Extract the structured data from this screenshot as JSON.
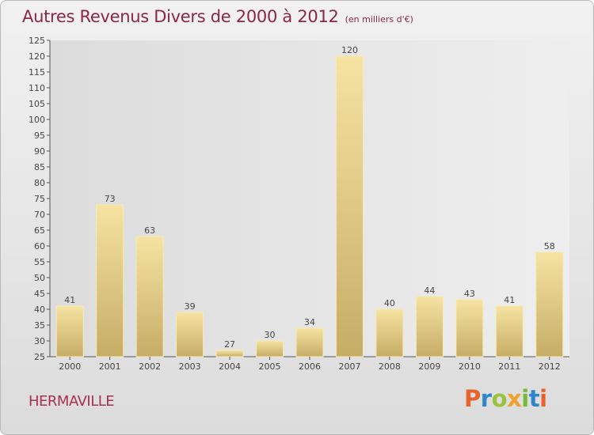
{
  "header": {
    "title": "Autres Revenus Divers de 2000 à 2012",
    "unit": "(en milliers d'€)"
  },
  "footer": {
    "commune": "HERMAVILLE",
    "logo_letters": [
      "P",
      "r",
      "o",
      "x",
      "i",
      "t",
      "i"
    ],
    "logo_colors": [
      "#e8622b",
      "#2f87c9",
      "#9ac23c",
      "#f0a32c",
      "#7ab83a",
      "#2f87c9",
      "#e8622b"
    ]
  },
  "colors": {
    "title": "#8a2746",
    "commune": "#a8324f",
    "bar_light": "#f6e3a2",
    "bar_dark": "#c6ad66",
    "plot_bg": "#eaeaea",
    "text": "#444444"
  },
  "chart_data": {
    "type": "bar",
    "title": "Autres Revenus Divers de 2000 à 2012",
    "subtitle": "(en milliers d'€)",
    "categories": [
      "2000",
      "2001",
      "2002",
      "2003",
      "2004",
      "2005",
      "2006",
      "2007",
      "2008",
      "2009",
      "2010",
      "2011",
      "2012"
    ],
    "values": [
      41,
      73,
      63,
      39,
      27,
      30,
      34,
      120,
      40,
      44,
      43,
      41,
      58
    ],
    "xlabel": "",
    "ylabel": "",
    "ylim": [
      25,
      125
    ],
    "ytick_step": 5,
    "grid": false,
    "legend": "none"
  }
}
